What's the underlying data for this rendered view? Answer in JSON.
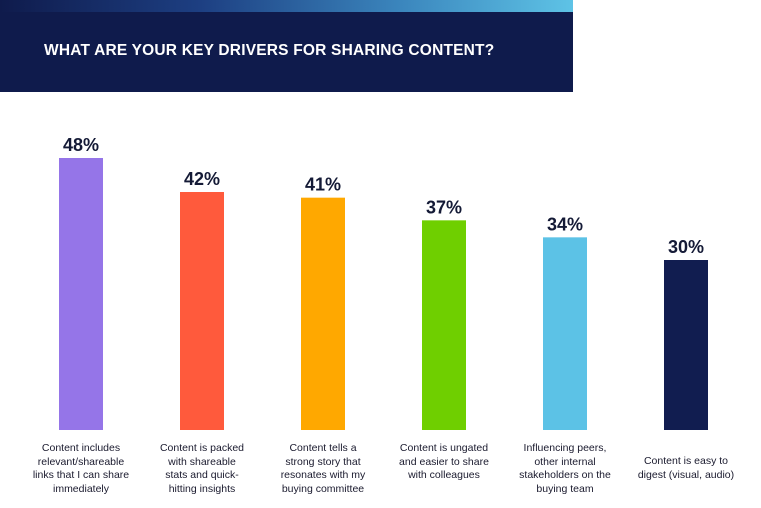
{
  "header": {
    "title": "WHAT ARE YOUR KEY DRIVERS FOR SHARING CONTENT?"
  },
  "chart_data": {
    "type": "bar",
    "title": "WHAT ARE YOUR KEY DRIVERS FOR SHARING CONTENT?",
    "categories": [
      "Content includes relevant/shareable links that I can share immediately",
      "Content is packed with shareable stats and quick-hitting insights",
      "Content tells a strong story that resonates with my buying committee",
      "Content is ungated and easier to share with colleagues",
      "Influencing peers, other internal stakeholders on the buying team",
      "Content is easy to digest (visual, audio)"
    ],
    "category_lines": [
      [
        "Content includes",
        "relevant/shareable",
        "links that I can share",
        "immediately"
      ],
      [
        "Content is packed",
        "with shareable",
        "stats and quick-",
        "hitting insights"
      ],
      [
        "Content tells a",
        "strong story that",
        "resonates with my",
        "buying committee"
      ],
      [
        "Content is ungated",
        "and easier to share",
        "with colleagues"
      ],
      [
        "Influencing peers,",
        "other internal",
        "stakeholders on the",
        "buying team"
      ],
      [
        "Content is easy to",
        "digest (visual, audio)"
      ]
    ],
    "values": [
      48,
      42,
      41,
      37,
      34,
      30
    ],
    "data_labels": [
      "48%",
      "42%",
      "41%",
      "37%",
      "34%",
      "30%"
    ],
    "colors": [
      "#9575e8",
      "#ff5a3c",
      "#ffa800",
      "#6fcf00",
      "#5cc2e6",
      "#111d50"
    ],
    "value_unit": "%",
    "ylim": [
      0,
      48
    ],
    "grid": false,
    "legend": "none",
    "xlabel": "",
    "ylabel": ""
  }
}
